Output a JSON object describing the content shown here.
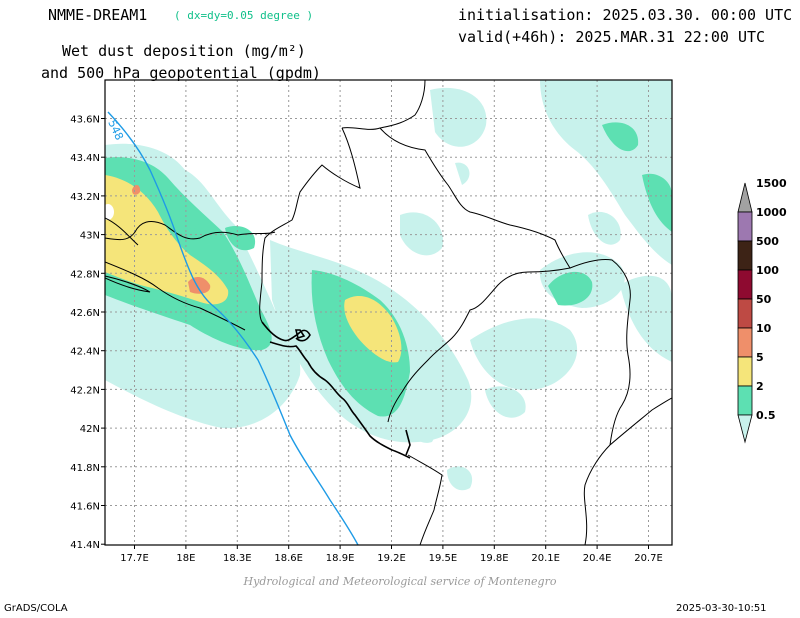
{
  "header": {
    "model_name": "NMME-DREAM1",
    "model_resolution": "( dx=dy=0.05 degree )",
    "title_line1": "Wet dust deposition (mg/m²)",
    "title_line2": "and 500 hPa geopotential (gpdm)",
    "initialisation": "initialisation: 2025.03.30. 00:00 UTC",
    "valid": "valid(+46h): 2025.MAR.31 22:00 UTC"
  },
  "map": {
    "lon_labels": [
      "17.7E",
      "18E",
      "18.3E",
      "18.6E",
      "18.9E",
      "19.2E",
      "19.5E",
      "19.8E",
      "20.1E",
      "20.4E",
      "20.7E"
    ],
    "lat_labels": [
      "43.6N",
      "43.4N",
      "43.2N",
      "43N",
      "42.8N",
      "42.6N",
      "42.4N",
      "42.2N",
      "42N",
      "41.8N",
      "41.6N",
      "41.4N"
    ],
    "contour_label": "548",
    "contour_color": "#1e9be6"
  },
  "legend": {
    "levels": [
      "0.5",
      "2",
      "5",
      "10",
      "50",
      "100",
      "500",
      "1000",
      "1500"
    ],
    "colors": [
      "#c8f2ec",
      "#5de0b2",
      "#f5e57a",
      "#ef8f6a",
      "#be4a44",
      "#8e0a30",
      "#3d2316",
      "#9d78b0",
      "#a2a2a2"
    ]
  },
  "footer": {
    "credit": "Hydrological and Meteorological service of Montenegro",
    "software": "GrADS/COLA",
    "timestamp": "2025-03-30-10:51"
  }
}
